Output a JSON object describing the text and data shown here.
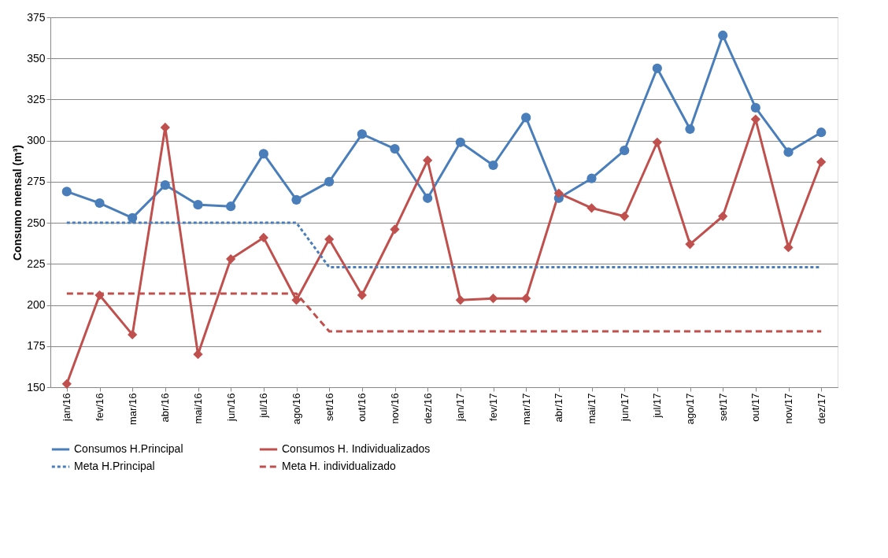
{
  "chart_data": {
    "type": "line",
    "ylabel": "Consumo mensal (m³)",
    "categories": [
      "jan/16",
      "fev/16",
      "mar/16",
      "abr/16",
      "mai/16",
      "jun/16",
      "jul/16",
      "ago/16",
      "set/16",
      "out/16",
      "nov/16",
      "dez/16",
      "jan/17",
      "fev/17",
      "mar/17",
      "abr/17",
      "mai/17",
      "jun/17",
      "jul/17",
      "ago/17",
      "set/17",
      "out/17",
      "nov/17",
      "dez/17"
    ],
    "ylim": [
      150,
      375
    ],
    "yticks": [
      150,
      175,
      200,
      225,
      250,
      275,
      300,
      325,
      350,
      375
    ],
    "grid": "y",
    "legend": "bottom",
    "series": [
      {
        "name": "Consumos H.Principal",
        "color": "#4a7ebb",
        "marker": "circle",
        "line_style": "solid",
        "values": [
          269,
          262,
          253,
          273,
          261,
          260,
          292,
          264,
          275,
          304,
          295,
          265,
          299,
          285,
          314,
          265,
          277,
          294,
          344,
          307,
          364,
          320,
          293,
          305
        ]
      },
      {
        "name": "Consumos H. Individualizados",
        "color": "#c0504d",
        "marker": "diamond",
        "line_style": "solid",
        "values": [
          152,
          206,
          182,
          308,
          170,
          228,
          241,
          203,
          240,
          206,
          246,
          288,
          203,
          204,
          204,
          268,
          259,
          254,
          299,
          237,
          254,
          313,
          235,
          287
        ]
      },
      {
        "name": "Meta H.Principal",
        "color": "#4a7ebb",
        "marker": "none",
        "line_style": "dotted",
        "values": [
          250,
          250,
          250,
          250,
          250,
          250,
          250,
          250,
          223,
          223,
          223,
          223,
          223,
          223,
          223,
          223,
          223,
          223,
          223,
          223,
          223,
          223,
          223,
          223
        ]
      },
      {
        "name": "Meta H. individualizado",
        "color": "#c0504d",
        "marker": "none",
        "line_style": "dashed",
        "values": [
          207,
          207,
          207,
          207,
          207,
          207,
          207,
          207,
          184,
          184,
          184,
          184,
          184,
          184,
          184,
          184,
          184,
          184,
          184,
          184,
          184,
          184,
          184,
          184
        ]
      }
    ]
  }
}
